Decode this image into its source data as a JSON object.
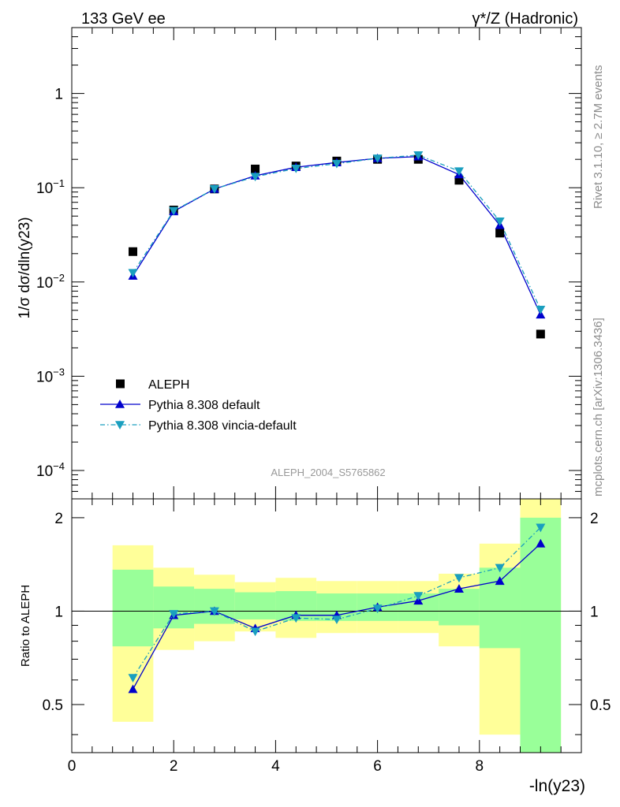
{
  "header": {
    "left": "133 GeV ee",
    "right": "γ*/Z (Hadronic)"
  },
  "side_labels": {
    "rivet": "Rivet 3.1.10, ≥ 2.7M events",
    "mcplots": "mcplots.cern.ch [arXiv:1306.3436]"
  },
  "watermark": "ALEPH_2004_S5765862",
  "chart_data": [
    {
      "type": "scatter",
      "panel": "main",
      "ylabel": "1/σ dσ/dln(y23)",
      "xlabel": "-ln(y23)",
      "yscale": "log",
      "ylim": [
        5e-05,
        5
      ],
      "xlim": [
        0,
        10
      ],
      "y_ticks": [
        "10^-4",
        "10^-3",
        "10^-2",
        "10^-1",
        "1"
      ],
      "x": [
        1.2,
        2.0,
        2.8,
        3.6,
        4.4,
        5.2,
        6.0,
        6.8,
        7.6,
        8.4,
        9.2
      ],
      "series": [
        {
          "name": "ALEPH",
          "marker": "square",
          "color": "#000000",
          "values": [
            0.021,
            0.058,
            0.097,
            0.158,
            0.17,
            0.192,
            0.2,
            0.2,
            0.12,
            0.033,
            0.0028
          ]
        },
        {
          "name": "Pythia 8.308 default",
          "marker": "triangle-up",
          "line": "solid",
          "color": "#0000cc",
          "values": [
            0.0116,
            0.056,
            0.097,
            0.134,
            0.165,
            0.185,
            0.205,
            0.214,
            0.138,
            0.04,
            0.0045
          ]
        },
        {
          "name": "Pythia 8.308 vincia-default",
          "marker": "triangle-down",
          "line": "dash-dot",
          "color": "#1a9fbf",
          "values": [
            0.0125,
            0.057,
            0.097,
            0.131,
            0.16,
            0.18,
            0.205,
            0.222,
            0.15,
            0.044,
            0.0051
          ]
        }
      ],
      "legend": "bottom-left"
    },
    {
      "type": "line",
      "panel": "ratio",
      "ylabel": "Ratio to ALEPH",
      "xlabel": "-ln(y23)",
      "ylim": [
        0.35,
        2.3
      ],
      "xlim": [
        0,
        10
      ],
      "x_ticks": [
        0,
        2,
        4,
        6,
        8
      ],
      "y_ticks": [
        0.5,
        1,
        2
      ],
      "bin_edges": [
        0.8,
        1.6,
        2.4,
        3.2,
        4.0,
        4.8,
        5.6,
        6.4,
        7.2,
        8.0,
        8.8,
        9.6
      ],
      "band_inner": [
        [
          0.77,
          1.36
        ],
        [
          0.88,
          1.2
        ],
        [
          0.91,
          1.18
        ],
        [
          0.94,
          1.15
        ],
        [
          0.93,
          1.16
        ],
        [
          0.93,
          1.14
        ],
        [
          0.93,
          1.14
        ],
        [
          0.93,
          1.14
        ],
        [
          0.9,
          1.18
        ],
        [
          0.76,
          1.38
        ],
        [
          0.34,
          2.0
        ]
      ],
      "band_outer": [
        [
          0.44,
          1.63
        ],
        [
          0.75,
          1.38
        ],
        [
          0.8,
          1.31
        ],
        [
          0.86,
          1.24
        ],
        [
          0.82,
          1.28
        ],
        [
          0.85,
          1.25
        ],
        [
          0.85,
          1.25
        ],
        [
          0.85,
          1.25
        ],
        [
          0.77,
          1.32
        ],
        [
          0.4,
          1.65
        ],
        [
          0.34,
          2.3
        ]
      ],
      "band_colors": {
        "inner": "#99ff99",
        "outer": "#ffff99"
      },
      "x": [
        1.2,
        2.0,
        2.8,
        3.6,
        4.4,
        5.2,
        6.0,
        6.8,
        7.6,
        8.4,
        9.2
      ],
      "series": [
        {
          "name": "Pythia 8.308 default",
          "color": "#0000cc",
          "marker": "triangle-up",
          "values": [
            0.56,
            0.97,
            1.0,
            0.88,
            0.97,
            0.97,
            1.03,
            1.08,
            1.18,
            1.25,
            1.65
          ]
        },
        {
          "name": "Pythia 8.308 vincia-default",
          "color": "#1a9fbf",
          "marker": "triangle-down",
          "values": [
            0.61,
            0.98,
            1.0,
            0.86,
            0.95,
            0.94,
            1.02,
            1.12,
            1.28,
            1.38,
            1.86
          ]
        }
      ]
    }
  ]
}
